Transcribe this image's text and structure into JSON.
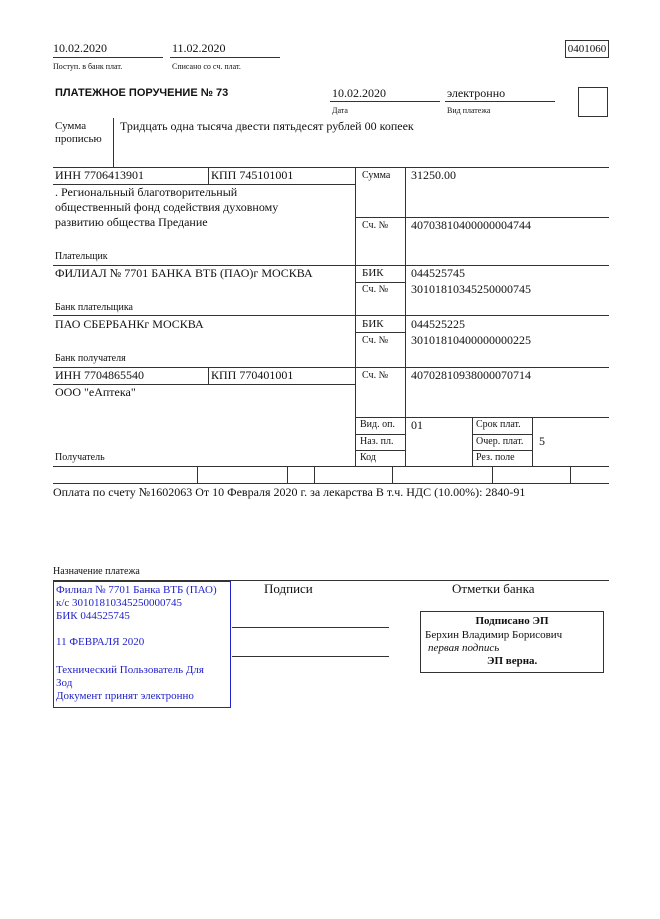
{
  "header": {
    "received_date": "10.02.2020",
    "received_label": "Поступ. в банк плат.",
    "debited_date": "11.02.2020",
    "debited_label": "Списано со сч. плат.",
    "form_code": "0401060"
  },
  "order": {
    "title": "ПЛАТЕЖНОЕ ПОРУЧЕНИЕ № 73",
    "date": "10.02.2020",
    "date_label": "Дата",
    "payment_type": "электронно",
    "payment_type_label": "Вид платежа",
    "amount_words_label_1": "Сумма",
    "amount_words_label_2": "прописью",
    "amount_words": "Тридцать одна тысяча двести пятьдесят рублей 00 копеек"
  },
  "payer": {
    "inn": "ИНН 7706413901",
    "kpp": "КПП 745101001",
    "name_lines": [
      ". Региональный благотворительный",
      "общественный фонд содействия духовному",
      "развитию общества Предание"
    ],
    "label": "Плательщик",
    "amount_label": "Сумма",
    "amount": "31250.00",
    "account_label": "Сч. №",
    "account": "40703810400000004744"
  },
  "payer_bank": {
    "name": "ФИЛИАЛ № 7701 БАНКА ВТБ (ПАО)г МОСКВА",
    "label": "Банк плательщика",
    "bik_label": "БИК",
    "bik": "044525745",
    "account_label": "Сч. №",
    "account": "30101810345250000745"
  },
  "payee_bank": {
    "name": "ПАО СБЕРБАНКг МОСКВА",
    "label": "Банк получателя",
    "bik_label": "БИК",
    "bik": "044525225",
    "account_label": "Сч. №",
    "account": "30101810400000000225"
  },
  "payee": {
    "inn": "ИНН 7704865540",
    "kpp": "КПП 770401001",
    "name": "ООО \"еАптека\"",
    "label": "Получатель",
    "account_label": "Сч. №",
    "account": "40702810938000070714"
  },
  "codes": {
    "op_type_label": "Вид. оп.",
    "op_type": "01",
    "purpose_code_label": "Наз. пл.",
    "code_label": "Код",
    "term_label": "Срок плат.",
    "priority_label": "Очер. плат.",
    "priority": "5",
    "reserve_label": "Рез. поле"
  },
  "purpose": {
    "text": "Оплата по счету №1602063 От 10 Февраля 2020 г. за лекарства В т.ч. НДС (10.00%): 2840-91",
    "label": "Назначение платежа"
  },
  "stamp": {
    "lines": [
      "Филиал № 7701 Банка ВТБ (ПАО)",
      "к/с 30101810345250000745",
      "БИК 044525745",
      "11 ФЕВРАЛЯ 2020",
      "Технический Пользователь Для",
      "Зод",
      "Документ принят электронно"
    ],
    "color": "#2222cc"
  },
  "signatures": {
    "label": "Подписи"
  },
  "bank_marks": {
    "label": "Отметки банка",
    "signed": "Подписано ЭП",
    "signer": "Берхин Владимир Борисович",
    "role": "первая подпись",
    "verified": "ЭП верна."
  }
}
